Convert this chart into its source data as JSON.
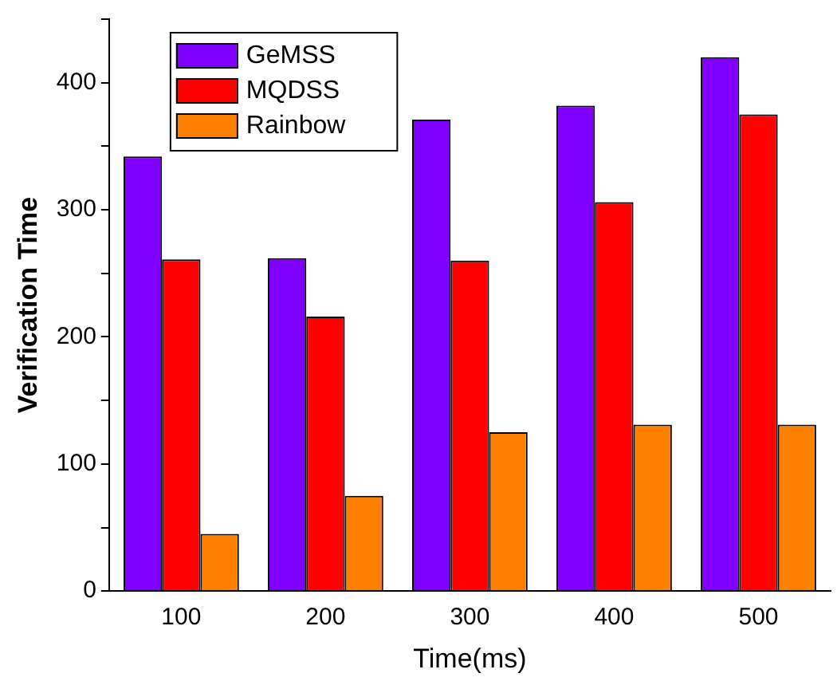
{
  "chart_data": {
    "type": "bar",
    "xlabel": "Time(ms)",
    "ylabel": "Verification Time",
    "categories": [
      "100",
      "200",
      "300",
      "400",
      "500"
    ],
    "series": [
      {
        "name": "GeMSS",
        "color": "#8000ff",
        "values": [
          342,
          262,
          371,
          382,
          420
        ]
      },
      {
        "name": "MQDSS",
        "color": "#ff0000",
        "values": [
          261,
          216,
          260,
          306,
          375
        ]
      },
      {
        "name": "Rainbow",
        "color": "#ff8000",
        "values": [
          45,
          75,
          125,
          131,
          131
        ]
      }
    ],
    "ylim": [
      0,
      450
    ],
    "yticks": [
      0,
      {
        "value": 50,
        "label": null
      },
      100,
      {
        "value": 150,
        "label": null
      },
      200,
      {
        "value": 250,
        "label": null
      },
      300,
      {
        "value": 350,
        "label": null
      },
      400,
      {
        "value": 450,
        "label": null
      }
    ],
    "grid": false,
    "legend": "top left"
  }
}
